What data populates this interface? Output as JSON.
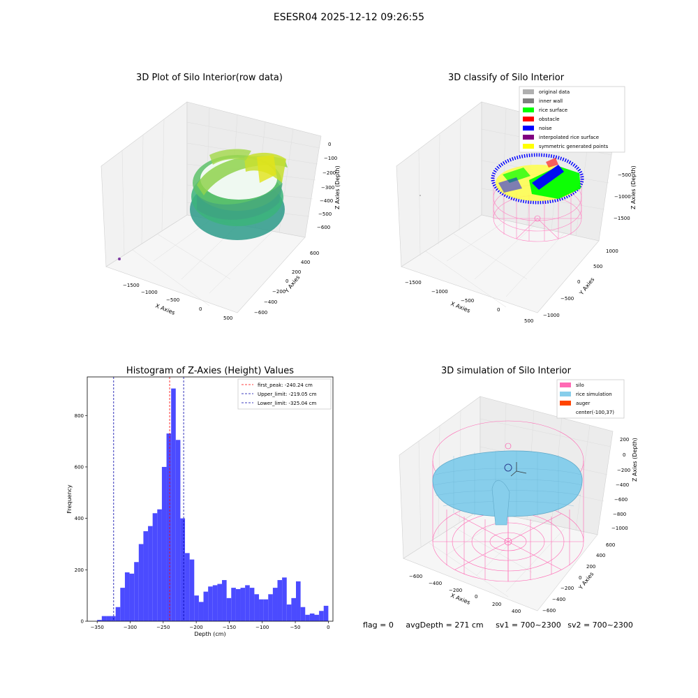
{
  "suptitle": "ESESR04 2025-12-12 09:26:55",
  "colors": {
    "wall_gray": "#a0a0a0",
    "pane": "#f2f2f2",
    "hist_bar": "#4b4bff",
    "first_peak": "#ff0000",
    "limits": "#0000aa",
    "silo_pink": "#ff69b4",
    "rice_blue": "#87ceeb",
    "auger": "#ff4500"
  },
  "status": {
    "flag": "flag = 0",
    "avg": "avgDepth = 271 cm",
    "sv1": "sv1 = 700~2300",
    "sv2": "sv2 = 700~2300"
  },
  "chart_data": [
    {
      "type": "scatter",
      "title": "3D Plot of Silo Interior(row data)",
      "xlabel": "X Axies",
      "ylabel": "Y Axies",
      "zlabel": "Z Axies (Depth)",
      "xticks": [
        "−1500",
        "−1000",
        "−500",
        "0",
        "500"
      ],
      "yticks": [
        "−600",
        "−400",
        "−200",
        "0",
        "200",
        "400",
        "600"
      ],
      "zticks": [
        "0",
        "−100",
        "−200",
        "−300",
        "−400",
        "−500",
        "−600"
      ],
      "xlim": [
        -1700,
        550
      ],
      "ylim": [
        -650,
        650
      ],
      "zlim": [
        -680,
        20
      ],
      "colormap": "viridis",
      "grid": true
    },
    {
      "type": "scatter",
      "title": "3D classify of Silo Interior",
      "xlabel": "X Axies",
      "ylabel": "Y Axies",
      "zlabel": "Z Axies (Depth)",
      "xticks": [
        "−1500",
        "−1000",
        "−500",
        "0",
        "500"
      ],
      "yticks": [
        "−1000",
        "−500",
        "0",
        "500",
        "1000"
      ],
      "zticks": [
        "−500",
        "−1000",
        "−1500"
      ],
      "legend_position": "upper-right",
      "legend": [
        {
          "label": "original data",
          "color": "#b0b0b0"
        },
        {
          "label": "inner wall",
          "color": "#808080"
        },
        {
          "label": "rice surface",
          "color": "#00ff00"
        },
        {
          "label": "obstacle",
          "color": "#ff0000"
        },
        {
          "label": "noise",
          "color": "#0000ff"
        },
        {
          "label": "interpolated rice surface",
          "color": "#800080"
        },
        {
          "label": "symmetric generated points",
          "color": "#ffff00"
        }
      ],
      "grid": true
    },
    {
      "type": "bar",
      "title": "Histogram of Z-Axies (Height) Values",
      "xlabel": "Depth (cm)",
      "ylabel": "Frequency",
      "xlim": [
        -365,
        7
      ],
      "ylim": [
        0,
        950
      ],
      "xticks": [
        -350,
        -300,
        -250,
        -200,
        -150,
        -100,
        -50,
        0
      ],
      "yticks": [
        0,
        200,
        400,
        600,
        800
      ],
      "bin_width": 7,
      "bin_start": -350,
      "values": [
        5,
        20,
        20,
        20,
        55,
        130,
        190,
        185,
        230,
        300,
        350,
        370,
        420,
        435,
        600,
        730,
        905,
        705,
        400,
        265,
        240,
        100,
        75,
        115,
        135,
        140,
        145,
        160,
        90,
        130,
        125,
        130,
        140,
        130,
        105,
        85,
        85,
        105,
        130,
        160,
        170,
        65,
        90,
        155,
        55,
        25,
        30,
        25,
        40,
        60
      ],
      "lines": [
        {
          "label": "first_peak: -240.24 cm",
          "x": -240.24,
          "color": "#ff0000"
        },
        {
          "label": "Upper_limit: -219.05 cm",
          "x": -219.05,
          "color": "#0000aa"
        },
        {
          "label": "Lower_limit: -325.04 cm",
          "x": -325.04,
          "color": "#0000aa"
        }
      ],
      "legend_position": "upper-right",
      "grid": false
    },
    {
      "type": "scatter",
      "title": "3D simulation of Silo Interior",
      "xlabel": "X Axies",
      "ylabel": "Y Axies",
      "zlabel": "Z Axies (Depth)",
      "xticks": [
        "−600",
        "−400",
        "−200",
        "0",
        "200",
        "400"
      ],
      "yticks": [
        "−600",
        "−400",
        "−200",
        "0",
        "200",
        "400",
        "600"
      ],
      "zticks": [
        "200",
        "0",
        "−200",
        "−400",
        "−600",
        "−800",
        "−1000"
      ],
      "legend_position": "upper-right",
      "legend": [
        {
          "label": "silo",
          "color": "#ff69b4"
        },
        {
          "label": "rice simulation",
          "color": "#87ceeb"
        },
        {
          "label": "auger",
          "color": "#ff4500"
        },
        {
          "label": "center(-100,37)",
          "color": ""
        }
      ],
      "grid": true
    }
  ]
}
